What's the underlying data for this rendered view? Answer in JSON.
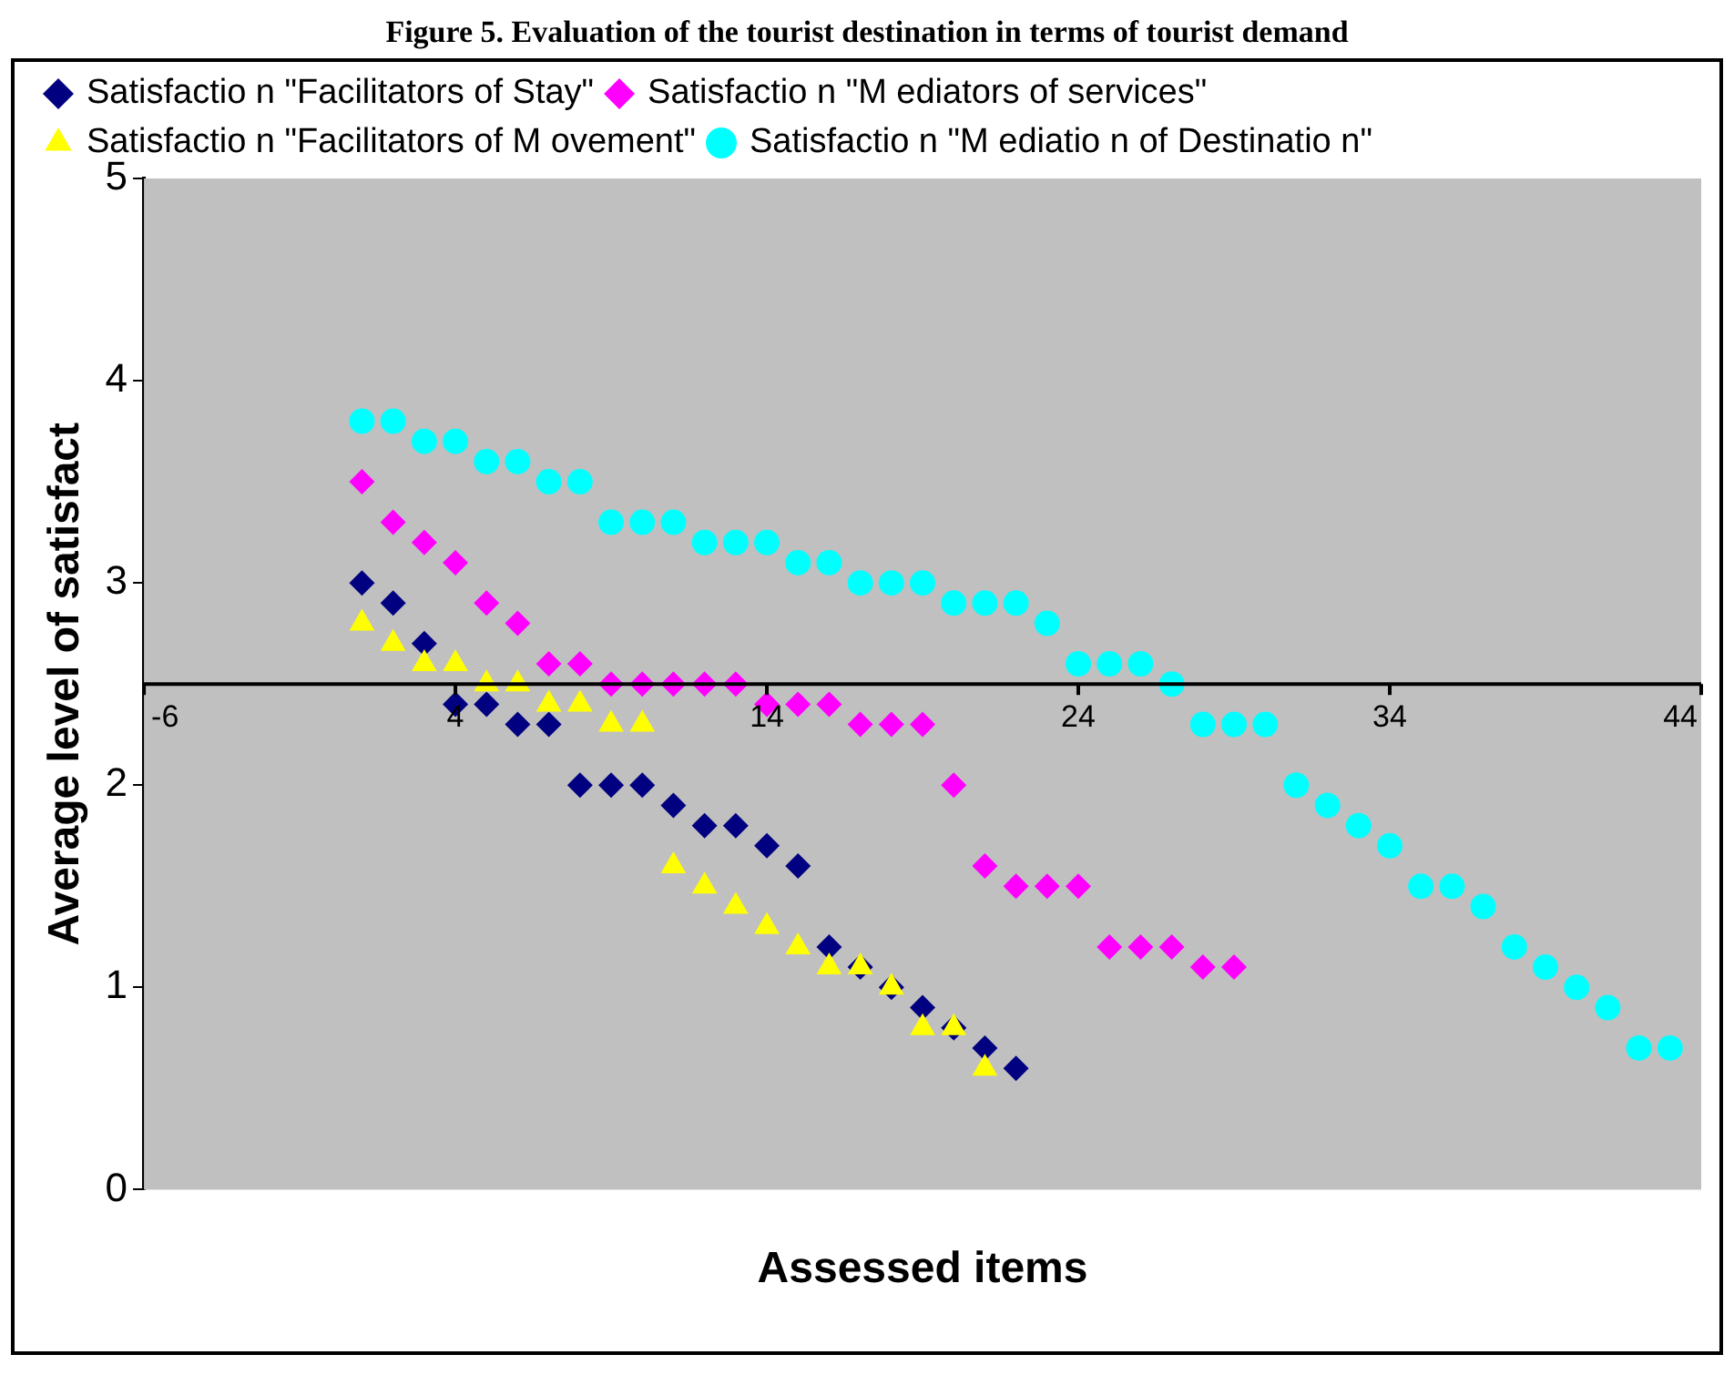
{
  "chart_data": {
    "type": "scatter",
    "title": "Figure 5. Evaluation of the tourist destination in terms of tourist demand",
    "xlabel": "Assessed items",
    "ylabel": "Average level of satisfact",
    "xlim": [
      -6,
      44
    ],
    "xticks": [
      -6,
      4,
      14,
      24,
      34,
      44
    ],
    "ylim": [
      0,
      5
    ],
    "yticks": [
      0,
      1,
      2,
      3,
      4,
      5
    ],
    "grid": false,
    "legend": "top",
    "series": [
      {
        "name": "Satisfactio n \"Facilitators of Stay\"",
        "color": "#000080",
        "marker": "diamond",
        "x": [
          1,
          2,
          3,
          4,
          5,
          6,
          7,
          8,
          9,
          10,
          11,
          12,
          13,
          14,
          15,
          16,
          17,
          18,
          19,
          20,
          21,
          22
        ],
        "values": [
          3.0,
          2.9,
          2.7,
          2.4,
          2.4,
          2.3,
          2.3,
          2.0,
          2.0,
          2.0,
          1.9,
          1.8,
          1.8,
          1.7,
          1.6,
          1.2,
          1.1,
          1.0,
          0.9,
          0.8,
          0.7,
          0.6
        ]
      },
      {
        "name": "Satisfactio n \"M ediators of services\"",
        "color": "#ff00ff",
        "marker": "diamond",
        "x": [
          1,
          2,
          3,
          4,
          5,
          6,
          7,
          8,
          9,
          10,
          11,
          12,
          13,
          14,
          15,
          16,
          17,
          18,
          19,
          20,
          21,
          22,
          23,
          24,
          25,
          26,
          27,
          28,
          29
        ],
        "values": [
          3.5,
          3.3,
          3.2,
          3.1,
          2.9,
          2.8,
          2.6,
          2.6,
          2.5,
          2.5,
          2.5,
          2.5,
          2.5,
          2.4,
          2.4,
          2.4,
          2.3,
          2.3,
          2.3,
          2.0,
          1.6,
          1.5,
          1.5,
          1.5,
          1.2,
          1.2,
          1.2,
          1.1,
          1.1
        ]
      },
      {
        "name": "Satisfactio n \"Facilitators of M ovement\"",
        "color": "#ffff00",
        "marker": "triangle",
        "x": [
          1,
          2,
          3,
          4,
          5,
          6,
          7,
          8,
          9,
          10,
          11,
          12,
          13,
          14,
          15,
          16,
          17,
          18,
          19,
          20,
          21
        ],
        "values": [
          2.8,
          2.7,
          2.6,
          2.6,
          2.5,
          2.5,
          2.4,
          2.4,
          2.3,
          2.3,
          1.6,
          1.5,
          1.4,
          1.3,
          1.2,
          1.1,
          1.1,
          1.0,
          0.8,
          0.8,
          0.6
        ]
      },
      {
        "name": "Satisfactio n \"M ediatio n of Destinatio n\"",
        "color": "#00ffff",
        "marker": "circle",
        "x": [
          1,
          2,
          3,
          4,
          5,
          6,
          7,
          8,
          9,
          10,
          11,
          12,
          13,
          14,
          15,
          16,
          17,
          18,
          19,
          20,
          21,
          22,
          23,
          24,
          25,
          26,
          27,
          28,
          29,
          30,
          31,
          32,
          33,
          34,
          35,
          36,
          37,
          38,
          39,
          40,
          41,
          42,
          43
        ],
        "values": [
          3.8,
          3.8,
          3.7,
          3.7,
          3.6,
          3.6,
          3.5,
          3.5,
          3.3,
          3.3,
          3.3,
          3.2,
          3.2,
          3.2,
          3.1,
          3.1,
          3.0,
          3.0,
          3.0,
          2.9,
          2.9,
          2.9,
          2.8,
          2.6,
          2.6,
          2.6,
          2.5,
          2.3,
          2.3,
          2.3,
          2.0,
          1.9,
          1.8,
          1.7,
          1.5,
          1.5,
          1.4,
          1.2,
          1.1,
          1.0,
          0.9,
          0.7,
          0.7
        ]
      }
    ]
  }
}
